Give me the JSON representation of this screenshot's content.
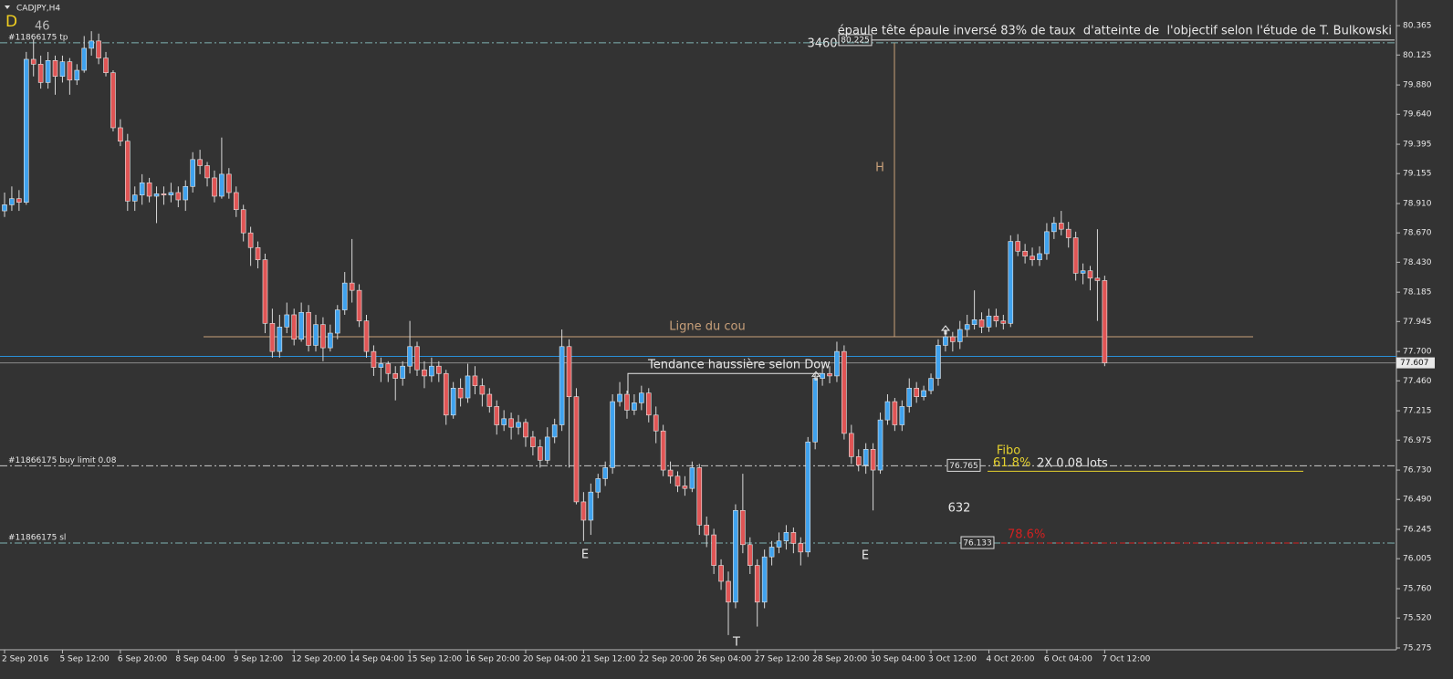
{
  "chart_data": {
    "type": "candlestick",
    "symbol": "CADJPY,H4",
    "mode": "D",
    "count": 46,
    "ylim": [
      75.26,
      80.56
    ],
    "yticks": [
      80.365,
      80.125,
      {
        "value": 79.88,
        "label": "79.880"
      },
      {
        "value": 79.64,
        "label": "79.640"
      },
      79.395,
      79.155,
      {
        "value": 78.91,
        "label": "78.910"
      },
      {
        "value": 78.67,
        "label": "78.670"
      },
      {
        "value": 78.43,
        "label": "78.430"
      },
      78.185,
      77.945,
      {
        "value": 77.7,
        "label": "77.700"
      },
      {
        "value": 77.46,
        "label": "77.460"
      },
      77.215,
      76.975,
      {
        "value": 76.73,
        "label": "76.730"
      },
      {
        "value": 76.49,
        "label": "76.490"
      },
      76.245,
      76.005,
      {
        "value": 75.76,
        "label": "75.760"
      },
      {
        "value": 75.52,
        "label": "75.520"
      },
      75.275
    ],
    "grid": false,
    "colors": {
      "background": "#333333",
      "up": "#3fa2ee",
      "down": "#e05555",
      "wick": "#d8d8d8",
      "level": "#7fb3b3",
      "neckline": "#c8a07a",
      "fibo": "#e6d22e",
      "fibo_red": "#d42020",
      "bid": "#2a8fd8"
    },
    "categories": [
      "2 Sep 2016",
      null,
      null,
      null,
      null,
      null,
      null,
      null,
      "5 Sep 12:00",
      null,
      null,
      null,
      null,
      null,
      null,
      null,
      "6 Sep 20:00",
      null,
      null,
      null,
      null,
      null,
      null,
      null,
      "8 Sep 04:00",
      null,
      null,
      null,
      null,
      null,
      null,
      null,
      "9 Sep 12:00",
      null,
      null,
      null,
      null,
      null,
      null,
      null,
      "12 Sep 20:00",
      null,
      null,
      null,
      null,
      null,
      null,
      null,
      "14 Sep 04:00",
      null,
      null,
      null,
      null,
      null,
      null,
      null,
      "15 Sep 12:00",
      null,
      null,
      null,
      null,
      null,
      null,
      null,
      "16 Sep 20:00",
      null,
      null,
      null,
      null,
      null,
      null,
      null,
      "20 Sep 04:00",
      null,
      null,
      null,
      null,
      null,
      null,
      null,
      "21 Sep 12:00",
      null,
      null,
      null,
      null,
      null,
      null,
      null,
      "22 Sep 20:00",
      null,
      null,
      null,
      null,
      null,
      null,
      null,
      "26 Sep 04:00",
      null,
      null,
      null,
      null,
      null,
      null,
      null,
      "27 Sep 12:00",
      null,
      null,
      null,
      null,
      null,
      null,
      null,
      "28 Sep 20:00",
      null,
      null,
      null,
      null,
      null,
      null,
      null,
      "30 Sep 04:00",
      null,
      null,
      null,
      null,
      null,
      null,
      null,
      "3 Oct 12:00",
      null,
      null,
      null,
      null,
      null,
      null,
      null,
      "4 Oct 20:00",
      null,
      null,
      null,
      null,
      null,
      null,
      null,
      "6 Oct 04:00",
      null,
      null,
      null,
      null,
      null,
      null,
      null,
      "7 Oct 12:00"
    ],
    "candles": [
      [
        78.85,
        79.0,
        78.8,
        78.9
      ],
      [
        78.9,
        79.05,
        78.85,
        78.95
      ],
      [
        78.95,
        79.02,
        78.85,
        78.92
      ],
      [
        78.92,
        80.15,
        78.9,
        80.09
      ],
      [
        80.09,
        80.25,
        79.95,
        80.05
      ],
      [
        80.05,
        80.12,
        79.85,
        79.9
      ],
      [
        79.9,
        80.15,
        79.85,
        80.08
      ],
      [
        80.08,
        80.12,
        79.8,
        79.95
      ],
      [
        79.95,
        80.12,
        79.9,
        80.07
      ],
      [
        80.07,
        80.1,
        79.8,
        79.92
      ],
      [
        79.92,
        80.05,
        79.88,
        80.0
      ],
      [
        80.0,
        80.28,
        79.98,
        80.18
      ],
      [
        80.18,
        80.32,
        80.12,
        80.24
      ],
      [
        80.24,
        80.3,
        80.05,
        80.1
      ],
      [
        80.1,
        80.15,
        79.95,
        79.98
      ],
      [
        79.98,
        80.0,
        79.5,
        79.53
      ],
      [
        79.53,
        79.6,
        79.38,
        79.42
      ],
      [
        79.42,
        79.48,
        78.85,
        78.93
      ],
      [
        78.93,
        79.05,
        78.85,
        78.98
      ],
      [
        78.98,
        79.15,
        78.9,
        79.08
      ],
      [
        79.08,
        79.12,
        78.92,
        78.97
      ],
      [
        78.97,
        79.05,
        78.75,
        78.99
      ],
      [
        78.99,
        79.05,
        78.9,
        78.98
      ],
      [
        78.98,
        79.08,
        78.92,
        79.0
      ],
      [
        79.0,
        79.05,
        78.88,
        78.94
      ],
      [
        78.94,
        79.1,
        78.85,
        79.05
      ],
      [
        79.05,
        79.33,
        79.0,
        79.27
      ],
      [
        79.27,
        79.35,
        79.15,
        79.22
      ],
      [
        79.22,
        79.25,
        79.05,
        79.12
      ],
      [
        79.12,
        79.18,
        78.92,
        78.97
      ],
      [
        78.97,
        79.45,
        78.95,
        79.15
      ],
      [
        79.15,
        79.2,
        78.95,
        79.0
      ],
      [
        79.0,
        79.05,
        78.8,
        78.86
      ],
      [
        78.86,
        78.9,
        78.6,
        78.67
      ],
      [
        78.67,
        78.72,
        78.4,
        78.55
      ],
      [
        78.55,
        78.6,
        78.38,
        78.45
      ],
      [
        78.45,
        78.5,
        77.85,
        77.93
      ],
      [
        77.93,
        78.05,
        77.65,
        77.7
      ],
      [
        77.7,
        78.0,
        77.65,
        77.9
      ],
      [
        77.9,
        78.1,
        77.85,
        78.0
      ],
      [
        78.0,
        78.05,
        77.75,
        77.8
      ],
      [
        77.8,
        78.1,
        77.78,
        78.02
      ],
      [
        78.02,
        78.08,
        77.7,
        77.75
      ],
      [
        77.75,
        78.0,
        77.7,
        77.92
      ],
      [
        77.92,
        77.98,
        77.62,
        77.73
      ],
      [
        77.73,
        77.92,
        77.7,
        77.85
      ],
      [
        77.85,
        78.08,
        77.8,
        78.04
      ],
      [
        78.04,
        78.35,
        78.0,
        78.26
      ],
      [
        78.26,
        78.62,
        78.1,
        78.2
      ],
      [
        78.2,
        78.25,
        77.9,
        77.95
      ],
      [
        77.95,
        78.0,
        77.65,
        77.7
      ],
      [
        77.7,
        77.75,
        77.5,
        77.57
      ],
      [
        77.57,
        77.65,
        77.45,
        77.6
      ],
      [
        77.6,
        77.62,
        77.45,
        77.52
      ],
      [
        77.52,
        77.58,
        77.3,
        77.48
      ],
      [
        77.48,
        77.62,
        77.42,
        77.58
      ],
      [
        77.58,
        77.95,
        77.52,
        77.74
      ],
      [
        77.74,
        77.78,
        77.5,
        77.55
      ],
      [
        77.55,
        77.62,
        77.4,
        77.5
      ],
      [
        77.5,
        77.65,
        77.45,
        77.58
      ],
      [
        77.58,
        77.62,
        77.45,
        77.52
      ],
      [
        77.52,
        77.55,
        77.1,
        77.18
      ],
      [
        77.18,
        77.45,
        77.15,
        77.4
      ],
      [
        77.4,
        77.48,
        77.25,
        77.32
      ],
      [
        77.32,
        77.6,
        77.28,
        77.5
      ],
      [
        77.5,
        77.58,
        77.35,
        77.42
      ],
      [
        77.42,
        77.48,
        77.25,
        77.35
      ],
      [
        77.35,
        77.4,
        77.2,
        77.25
      ],
      [
        77.25,
        77.3,
        77.02,
        77.1
      ],
      [
        77.1,
        77.22,
        77.05,
        77.15
      ],
      [
        77.15,
        77.2,
        76.98,
        77.08
      ],
      [
        77.08,
        77.18,
        77.02,
        77.12
      ],
      [
        77.12,
        77.15,
        76.92,
        77.0
      ],
      [
        77.0,
        77.05,
        76.85,
        76.92
      ],
      [
        76.92,
        76.98,
        76.75,
        76.81
      ],
      [
        76.81,
        77.08,
        76.78,
        77.0
      ],
      [
        77.0,
        77.15,
        76.95,
        77.1
      ],
      [
        77.1,
        77.88,
        77.05,
        77.74
      ],
      [
        77.74,
        77.8,
        76.75,
        77.33
      ],
      [
        77.33,
        77.4,
        76.45,
        76.47
      ],
      [
        76.47,
        76.55,
        76.15,
        76.32
      ],
      [
        76.32,
        76.62,
        76.2,
        76.55
      ],
      [
        76.55,
        76.7,
        76.5,
        76.66
      ],
      [
        76.66,
        76.8,
        76.6,
        76.75
      ],
      [
        76.75,
        77.35,
        76.7,
        77.29
      ],
      [
        77.29,
        77.45,
        77.25,
        77.35
      ],
      [
        77.35,
        77.38,
        77.15,
        77.22
      ],
      [
        77.22,
        77.35,
        77.18,
        77.28
      ],
      [
        77.28,
        77.42,
        77.22,
        77.36
      ],
      [
        77.36,
        77.4,
        77.12,
        77.18
      ],
      [
        77.18,
        77.25,
        76.95,
        77.05
      ],
      [
        77.05,
        77.1,
        76.68,
        76.73
      ],
      [
        76.73,
        76.8,
        76.62,
        76.68
      ],
      [
        76.68,
        76.72,
        76.55,
        76.6
      ],
      [
        76.6,
        76.68,
        76.52,
        76.58
      ],
      [
        76.58,
        76.8,
        76.55,
        76.75
      ],
      [
        76.75,
        76.78,
        76.2,
        76.28
      ],
      [
        76.28,
        76.35,
        76.1,
        76.2
      ],
      [
        76.2,
        76.25,
        75.88,
        75.95
      ],
      [
        75.95,
        76.0,
        75.75,
        75.82
      ],
      [
        75.82,
        75.9,
        75.38,
        75.65
      ],
      [
        75.65,
        76.45,
        75.6,
        76.4
      ],
      [
        76.4,
        76.7,
        76.05,
        76.12
      ],
      [
        76.12,
        76.18,
        75.88,
        75.95
      ],
      [
        75.95,
        76.0,
        75.45,
        75.65
      ],
      [
        75.65,
        76.08,
        75.6,
        76.02
      ],
      [
        76.02,
        76.15,
        75.95,
        76.1
      ],
      [
        76.1,
        76.22,
        76.05,
        76.15
      ],
      [
        76.15,
        76.28,
        76.08,
        76.22
      ],
      [
        76.22,
        76.26,
        76.05,
        76.13
      ],
      [
        76.13,
        76.18,
        75.95,
        76.06
      ],
      [
        76.06,
        77.0,
        76.02,
        76.96
      ],
      [
        76.96,
        77.52,
        76.9,
        77.48
      ],
      [
        77.48,
        77.6,
        77.42,
        77.52
      ],
      [
        77.52,
        77.58,
        77.44,
        77.5
      ],
      [
        77.5,
        77.78,
        77.45,
        77.7
      ],
      [
        77.7,
        77.75,
        76.98,
        77.03
      ],
      [
        77.03,
        77.1,
        76.78,
        76.84
      ],
      [
        76.84,
        76.9,
        76.72,
        76.77
      ],
      [
        76.77,
        76.95,
        76.7,
        76.9
      ],
      [
        76.9,
        76.95,
        76.4,
        76.73
      ],
      [
        76.73,
        77.2,
        76.7,
        77.14
      ],
      [
        77.14,
        77.35,
        77.1,
        77.29
      ],
      [
        77.29,
        77.32,
        77.05,
        77.1
      ],
      [
        77.1,
        77.3,
        77.05,
        77.25
      ],
      [
        77.25,
        77.48,
        77.2,
        77.4
      ],
      [
        77.4,
        77.45,
        77.28,
        77.33
      ],
      [
        77.33,
        77.42,
        77.3,
        77.38
      ],
      [
        77.38,
        77.52,
        77.35,
        77.48
      ],
      [
        77.48,
        77.8,
        77.42,
        77.75
      ],
      [
        77.75,
        77.88,
        77.7,
        77.82
      ],
      [
        77.82,
        77.86,
        77.7,
        77.78
      ],
      [
        77.78,
        77.95,
        77.72,
        77.88
      ],
      [
        77.88,
        78.0,
        77.82,
        77.92
      ],
      [
        77.92,
        78.2,
        77.88,
        77.96
      ],
      [
        77.96,
        78.02,
        77.85,
        77.9
      ],
      [
        77.9,
        78.05,
        77.86,
        77.99
      ],
      [
        77.99,
        78.05,
        77.9,
        77.95
      ],
      [
        77.95,
        78.0,
        77.88,
        77.93
      ],
      [
        77.93,
        78.65,
        77.9,
        78.6
      ],
      [
        78.6,
        78.66,
        78.48,
        78.52
      ],
      [
        78.52,
        78.58,
        78.42,
        78.48
      ],
      [
        78.48,
        78.55,
        78.4,
        78.45
      ],
      [
        78.45,
        78.56,
        78.4,
        78.5
      ],
      [
        78.5,
        78.75,
        78.45,
        78.68
      ],
      [
        78.68,
        78.8,
        78.62,
        78.75
      ],
      [
        78.75,
        78.85,
        78.65,
        78.7
      ],
      [
        78.7,
        78.76,
        78.55,
        78.63
      ],
      [
        78.63,
        78.68,
        78.28,
        78.34
      ],
      [
        78.34,
        78.42,
        78.25,
        78.36
      ],
      [
        78.36,
        78.4,
        78.2,
        78.3
      ],
      [
        78.3,
        78.7,
        77.95,
        78.28
      ],
      [
        78.28,
        78.32,
        77.58,
        77.607
      ]
    ],
    "levels": [
      {
        "label": "#11866175 tp",
        "value": 80.225
      },
      {
        "label": "#11866175 buy limit 0.08",
        "value": 76.765
      },
      {
        "label": "#11866175 sl",
        "value": 76.133
      }
    ],
    "ask_line": 77.66,
    "pattern_note": "épaule tête épaule inversé 83% de taux  d'atteinte de  l'objectif selon l'étude de T. Bulkowski",
    "target_points": 3460,
    "height_label": "H",
    "neckline": {
      "label": "Ligne du cou",
      "value": 77.82
    },
    "dow": {
      "label": "Tendance haussière selon Dow",
      "value": 77.52
    },
    "fibo": {
      "title": "Fibo",
      "lots": "2X 0.08 lots",
      "points": 632,
      "levels": [
        {
          "label": "61.8%",
          "value": 76.72
        },
        {
          "label": "78.6%",
          "value": 76.133
        }
      ]
    },
    "pattern_labels": [
      "E",
      "T",
      "E"
    ]
  }
}
